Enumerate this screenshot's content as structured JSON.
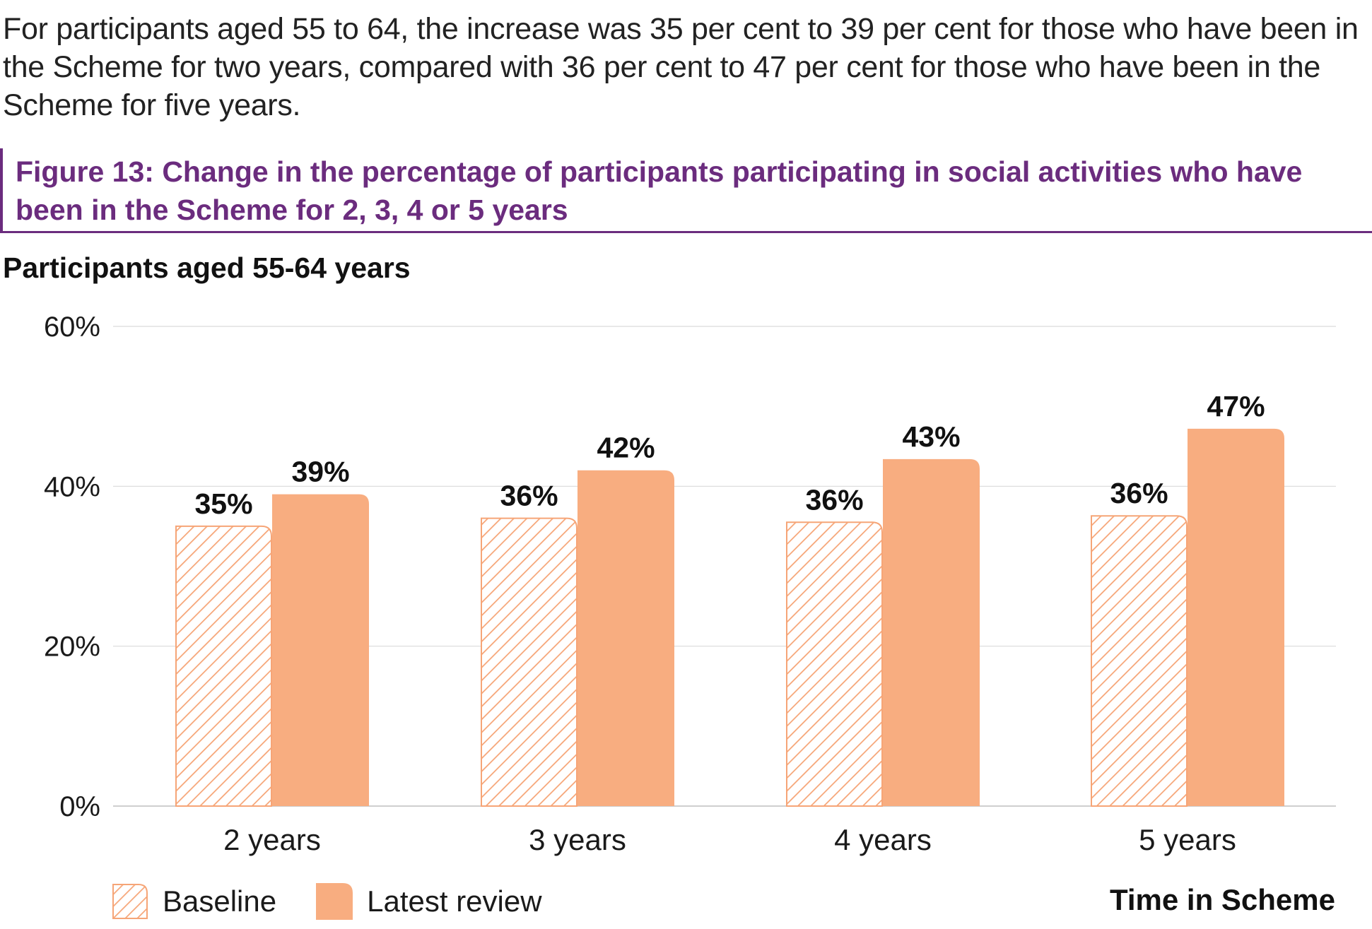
{
  "intro_text": "For participants aged 55 to 64, the increase was 35 per cent to 39 per cent for those who have been in the Scheme for two years, compared with 36 per cent to 47 per cent for those who have been in the Scheme for five years.",
  "figure_title": "Figure 13: Change in the percentage of participants participating in social activities who have been in the Scheme for 2, 3, 4 or 5 years",
  "colors": {
    "title_purple": "#6b2c7e",
    "latest_review": "#f8ad80",
    "baseline_hatch": "#f6a577",
    "gridline": "#d9d9d9"
  },
  "chart_data": {
    "type": "bar",
    "title": "Participants aged 55-64 years",
    "xlabel": "Time in Scheme",
    "ylabel": "",
    "categories": [
      "2 years",
      "3 years",
      "4 years",
      "5 years"
    ],
    "series": [
      {
        "name": "Baseline",
        "values": [
          35,
          36,
          35.5,
          36.3
        ],
        "labels": [
          "35%",
          "36%",
          "36%",
          "36%"
        ],
        "style": "hatched"
      },
      {
        "name": "Latest review",
        "values": [
          39,
          42,
          43.4,
          47.2
        ],
        "labels": [
          "39%",
          "42%",
          "43%",
          "47%"
        ],
        "style": "solid"
      }
    ],
    "ylim": [
      0,
      60
    ],
    "yticks": [
      0,
      20,
      40,
      60
    ],
    "ytick_labels": [
      "0%",
      "20%",
      "40%",
      "60%"
    ],
    "grid": true,
    "legend_position": "bottom-left"
  }
}
